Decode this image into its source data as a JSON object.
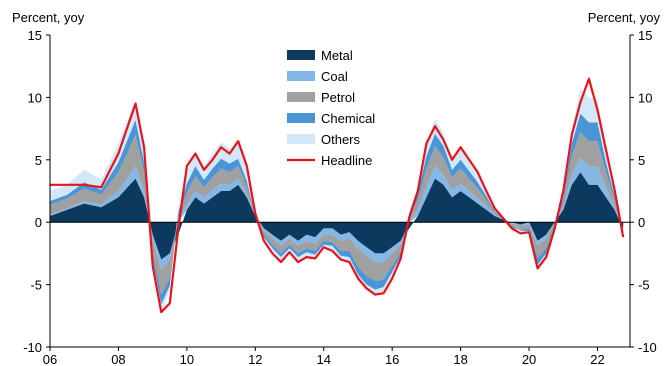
{
  "colors": {
    "Metal": "#0b3a5e",
    "Coal": "#86b8e6",
    "Petrol": "#a0a0a0",
    "Chemical": "#4a95d6",
    "Others": "#d2e7f8",
    "Headline": "#e8141b"
  },
  "chart_data": {
    "type": "area",
    "ylabel_left": "Percent, yoy",
    "ylabel_right": "Percent, yoy",
    "ylim": [
      -10,
      15
    ],
    "y_ticks": [
      "-10",
      "-5",
      "0",
      "5",
      "10",
      "15"
    ],
    "x_ticks": [
      "06",
      "08",
      "10",
      "12",
      "14",
      "16",
      "18",
      "20",
      "22"
    ],
    "grid": false,
    "legend_position": "top-center",
    "x": [
      2006.0,
      2006.5,
      2007.0,
      2007.5,
      2008.0,
      2008.5,
      2008.75,
      2009.0,
      2009.25,
      2009.5,
      2009.75,
      2010.0,
      2010.25,
      2010.5,
      2010.75,
      2011.0,
      2011.25,
      2011.5,
      2011.75,
      2012.0,
      2012.25,
      2012.5,
      2012.75,
      2013.0,
      2013.25,
      2013.5,
      2013.75,
      2014.0,
      2014.25,
      2014.5,
      2014.75,
      2015.0,
      2015.25,
      2015.5,
      2015.75,
      2016.0,
      2016.25,
      2016.5,
      2016.75,
      2017.0,
      2017.25,
      2017.5,
      2017.75,
      2018.0,
      2018.25,
      2018.5,
      2018.75,
      2019.0,
      2019.25,
      2019.5,
      2019.75,
      2020.0,
      2020.25,
      2020.5,
      2020.75,
      2021.0,
      2021.25,
      2021.5,
      2021.75,
      2022.0,
      2022.25,
      2022.5,
      2022.75
    ],
    "series": [
      {
        "name": "Metal",
        "type": "area",
        "values": [
          0.5,
          1.0,
          1.5,
          1.2,
          2.0,
          3.5,
          2.0,
          -1.0,
          -3.0,
          -2.5,
          -1.0,
          1.0,
          2.0,
          1.5,
          2.0,
          2.5,
          2.5,
          3.0,
          2.0,
          0.5,
          -0.5,
          -1.0,
          -1.5,
          -1.0,
          -1.5,
          -1.0,
          -1.2,
          -0.5,
          -0.5,
          -1.0,
          -0.8,
          -1.5,
          -2.0,
          -2.5,
          -2.5,
          -2.0,
          -1.5,
          -0.5,
          0.5,
          2.0,
          3.5,
          3.0,
          2.0,
          2.5,
          2.0,
          1.5,
          1.0,
          0.5,
          0.2,
          0.0,
          -0.2,
          0.0,
          -1.5,
          -1.0,
          0.0,
          1.0,
          3.0,
          4.0,
          3.0,
          3.0,
          2.0,
          1.0,
          -0.5
        ]
      },
      {
        "name": "Coal",
        "type": "area",
        "values": [
          0.1,
          0.1,
          0.2,
          0.2,
          0.5,
          1.0,
          0.5,
          -0.5,
          -0.8,
          -0.5,
          0.2,
          0.4,
          0.5,
          0.5,
          0.6,
          0.6,
          0.5,
          0.5,
          0.3,
          0.0,
          -0.2,
          -0.3,
          -0.4,
          -0.3,
          -0.4,
          -0.5,
          -0.5,
          -0.5,
          -0.5,
          -0.5,
          -0.5,
          -0.6,
          -0.7,
          -0.7,
          -0.7,
          -0.5,
          -0.3,
          0.2,
          0.5,
          0.8,
          1.0,
          0.8,
          0.6,
          0.6,
          0.5,
          0.4,
          0.3,
          0.1,
          0.0,
          -0.1,
          -0.1,
          -0.2,
          -0.4,
          -0.3,
          0.0,
          0.2,
          0.8,
          1.2,
          1.5,
          1.5,
          0.8,
          0.3,
          -0.2
        ]
      },
      {
        "name": "Petrol",
        "type": "area",
        "values": [
          0.8,
          0.8,
          1.0,
          0.8,
          1.5,
          2.5,
          1.5,
          -1.0,
          -2.0,
          -1.5,
          0.3,
          1.0,
          1.2,
          0.8,
          1.0,
          1.2,
          1.0,
          1.0,
          0.6,
          0.0,
          -0.3,
          -0.5,
          -0.6,
          -0.5,
          -0.6,
          -0.6,
          -0.6,
          -0.5,
          -0.6,
          -0.8,
          -1.0,
          -1.5,
          -1.6,
          -1.5,
          -1.4,
          -1.0,
          -0.6,
          0.3,
          0.8,
          1.5,
          1.6,
          1.4,
          1.0,
          1.2,
          1.0,
          0.8,
          0.5,
          0.2,
          0.0,
          -0.2,
          -0.3,
          -0.3,
          -1.0,
          -0.8,
          -0.2,
          0.5,
          1.5,
          2.0,
          2.0,
          2.0,
          1.2,
          0.5,
          -0.3
        ]
      },
      {
        "name": "Chemical",
        "type": "area",
        "values": [
          0.3,
          0.3,
          0.5,
          0.4,
          0.8,
          1.2,
          0.8,
          -0.5,
          -0.8,
          -0.6,
          0.3,
          0.7,
          0.8,
          0.6,
          0.7,
          0.8,
          0.7,
          0.6,
          0.4,
          0.0,
          -0.2,
          -0.3,
          -0.3,
          -0.3,
          -0.3,
          -0.3,
          -0.3,
          -0.3,
          -0.3,
          -0.4,
          -0.5,
          -0.6,
          -0.7,
          -0.7,
          -0.6,
          -0.5,
          -0.3,
          0.2,
          0.5,
          1.0,
          1.0,
          0.9,
          0.6,
          0.7,
          0.6,
          0.5,
          0.3,
          0.1,
          0.0,
          -0.1,
          -0.1,
          -0.2,
          -0.5,
          -0.4,
          -0.1,
          0.3,
          1.0,
          1.5,
          1.5,
          1.5,
          0.8,
          0.3,
          -0.2
        ]
      },
      {
        "name": "Others",
        "type": "area",
        "values": [
          0.8,
          0.8,
          1.0,
          0.8,
          1.5,
          1.5,
          0.8,
          -0.4,
          -0.6,
          -0.4,
          0.5,
          1.0,
          1.2,
          1.0,
          1.2,
          1.3,
          1.2,
          1.2,
          0.8,
          0.2,
          -0.1,
          -0.2,
          -0.3,
          -0.2,
          -0.3,
          -0.3,
          -0.3,
          -0.2,
          -0.3,
          -0.3,
          -0.4,
          -0.5,
          -0.5,
          -0.5,
          -0.5,
          -0.4,
          -0.2,
          0.2,
          0.5,
          1.0,
          1.2,
          1.0,
          0.8,
          0.9,
          0.8,
          0.6,
          0.4,
          0.2,
          0.1,
          0.0,
          -0.1,
          -0.1,
          -0.3,
          -0.3,
          -0.1,
          0.3,
          1.0,
          2.0,
          2.0,
          1.8,
          1.0,
          0.5,
          0.0
        ]
      },
      {
        "name": "Headline",
        "type": "line",
        "values": [
          3.0,
          3.0,
          3.0,
          2.8,
          5.5,
          9.5,
          6.0,
          -3.5,
          -7.2,
          -6.5,
          -0.5,
          4.5,
          5.5,
          4.2,
          5.0,
          6.0,
          5.5,
          6.5,
          4.5,
          0.7,
          -1.5,
          -2.5,
          -3.2,
          -2.4,
          -3.2,
          -2.8,
          -2.9,
          -2.0,
          -2.3,
          -3.0,
          -3.2,
          -4.5,
          -5.3,
          -5.8,
          -5.7,
          -4.5,
          -2.9,
          0.4,
          2.5,
          6.3,
          7.7,
          6.6,
          5.0,
          6.0,
          5.0,
          4.0,
          2.5,
          1.1,
          0.3,
          -0.5,
          -0.9,
          -0.8,
          -3.7,
          -2.8,
          -0.5,
          2.5,
          7.0,
          9.6,
          11.5,
          9.0,
          5.8,
          2.6,
          -1.2
        ]
      }
    ]
  }
}
